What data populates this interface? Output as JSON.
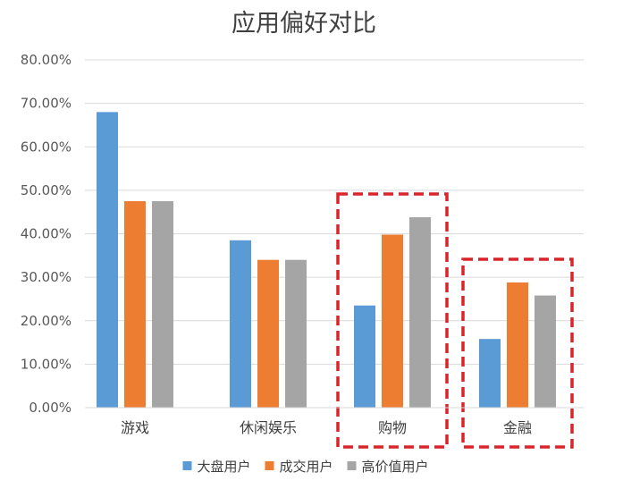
{
  "chart_data": {
    "type": "bar",
    "title": "应用偏好对比",
    "xlabel": "",
    "ylabel": "",
    "categories": [
      "游戏",
      "休闲娱乐",
      "购物",
      "金融"
    ],
    "series": [
      {
        "name": "大盘用户",
        "color": "#5B9BD5",
        "values": [
          68.0,
          38.5,
          23.5,
          15.8
        ]
      },
      {
        "name": "成交用户",
        "color": "#ED7D31",
        "values": [
          47.5,
          34.0,
          39.8,
          28.8
        ]
      },
      {
        "name": "高价值用户",
        "color": "#A5A5A5",
        "values": [
          47.5,
          34.0,
          43.8,
          25.8
        ]
      }
    ],
    "ylim": [
      0,
      80
    ],
    "yticks": [
      "0.00%",
      "10.00%",
      "20.00%",
      "30.00%",
      "40.00%",
      "50.00%",
      "60.00%",
      "70.00%",
      "80.00%"
    ],
    "grid": true,
    "legend_position": "bottom",
    "highlighted_categories": [
      "购物",
      "金融"
    ],
    "highlight_color": "#D9252A",
    "gridline_color": "#D9D9D9"
  }
}
